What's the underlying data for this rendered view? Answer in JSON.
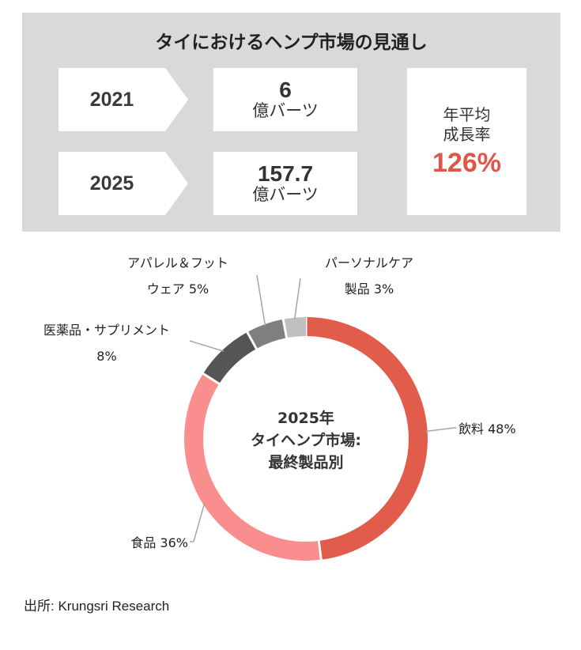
{
  "panel": {
    "title": "タイにおけるヘンプ市場の見通し",
    "rows": [
      {
        "year": "2021",
        "value": "6",
        "unit": "億バーツ"
      },
      {
        "year": "2025",
        "value": "157.7",
        "unit": "億バーツ"
      }
    ],
    "growth": {
      "label_line1": "年平均",
      "label_line2": "成長率",
      "value": "126%"
    }
  },
  "chart_data": {
    "type": "pie",
    "center_title": [
      "2025年",
      "タイヘンプ市場:",
      "最終製品別"
    ],
    "slices": [
      {
        "label": [
          "飲料 48%"
        ],
        "value": 48,
        "color": "#e25c4b"
      },
      {
        "label": [
          "食品 36%"
        ],
        "value": 36,
        "color": "#fa8d8d"
      },
      {
        "label": [
          "医薬品・サプリメント",
          "8%"
        ],
        "value": 8,
        "color": "#555555"
      },
      {
        "label": [
          "アパレル＆フット",
          "ウェア 5%"
        ],
        "value": 5,
        "color": "#7f7f7f"
      },
      {
        "label": [
          "パーソナルケア",
          "製品 3%"
        ],
        "value": 3,
        "color": "#bfbfbf"
      }
    ]
  },
  "source": "出所: Krungsri Research"
}
